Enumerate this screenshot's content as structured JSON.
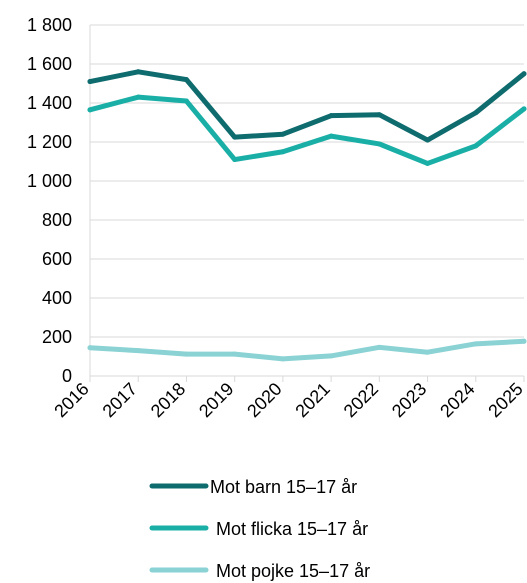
{
  "chart_data": {
    "type": "line",
    "title": "",
    "xlabel": "",
    "ylabel": "",
    "x": [
      "2016",
      "2017",
      "2018",
      "2019",
      "2020",
      "2021",
      "2022",
      "2023",
      "2024",
      "2025"
    ],
    "ylim": [
      0,
      1800
    ],
    "yticks": [
      0,
      200,
      400,
      600,
      800,
      1000,
      1200,
      1400,
      1600,
      1800
    ],
    "ytick_labels": [
      "0",
      "200",
      "400",
      "600",
      "800",
      "1 000",
      "1 200",
      "1 400",
      "1 600",
      "1 800"
    ],
    "grid": "horizontal",
    "legend_position": "bottom",
    "series": [
      {
        "name": "Mot barn 15–17 år",
        "color": "#0e6b6e",
        "values": [
          1510,
          1560,
          1520,
          1225,
          1240,
          1335,
          1340,
          1210,
          1350,
          1550
        ]
      },
      {
        "name": "Mot flicka 15–17 år",
        "color": "#1aafa6",
        "values": [
          1365,
          1430,
          1410,
          1110,
          1150,
          1230,
          1190,
          1090,
          1180,
          1370
        ]
      },
      {
        "name": "Mot pojke 15–17 år",
        "color": "#8ad2d3",
        "values": [
          145,
          130,
          112,
          112,
          88,
          103,
          147,
          122,
          165,
          178
        ]
      }
    ]
  }
}
